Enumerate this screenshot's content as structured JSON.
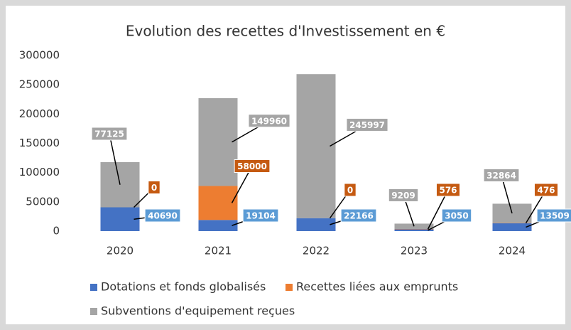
{
  "chart_data": {
    "type": "stacked_bar",
    "title": "Evolution des recettes d'Investissement en €",
    "categories": [
      "2020",
      "2021",
      "2022",
      "2023",
      "2024"
    ],
    "series": [
      {
        "name": "Dotations et fonds globalisés",
        "color": "#4472c4",
        "label_color": "#5b9bd5",
        "values": [
          40690,
          19104,
          22166,
          3050,
          13509
        ]
      },
      {
        "name": "Recettes liées aux emprunts",
        "color": "#ed7d31",
        "label_color": "#c55a11",
        "values": [
          0,
          58000,
          0,
          576,
          476
        ]
      },
      {
        "name": "Subventions d'equipement reçues",
        "color": "#a5a5a5",
        "label_color": "#a5a5a5",
        "values": [
          77125,
          149960,
          245997,
          9209,
          32864
        ]
      }
    ],
    "ylim": [
      0,
      300000
    ],
    "yticks": [
      0,
      50000,
      100000,
      150000,
      200000,
      250000,
      300000
    ],
    "grid": false,
    "legend": "bottom"
  }
}
